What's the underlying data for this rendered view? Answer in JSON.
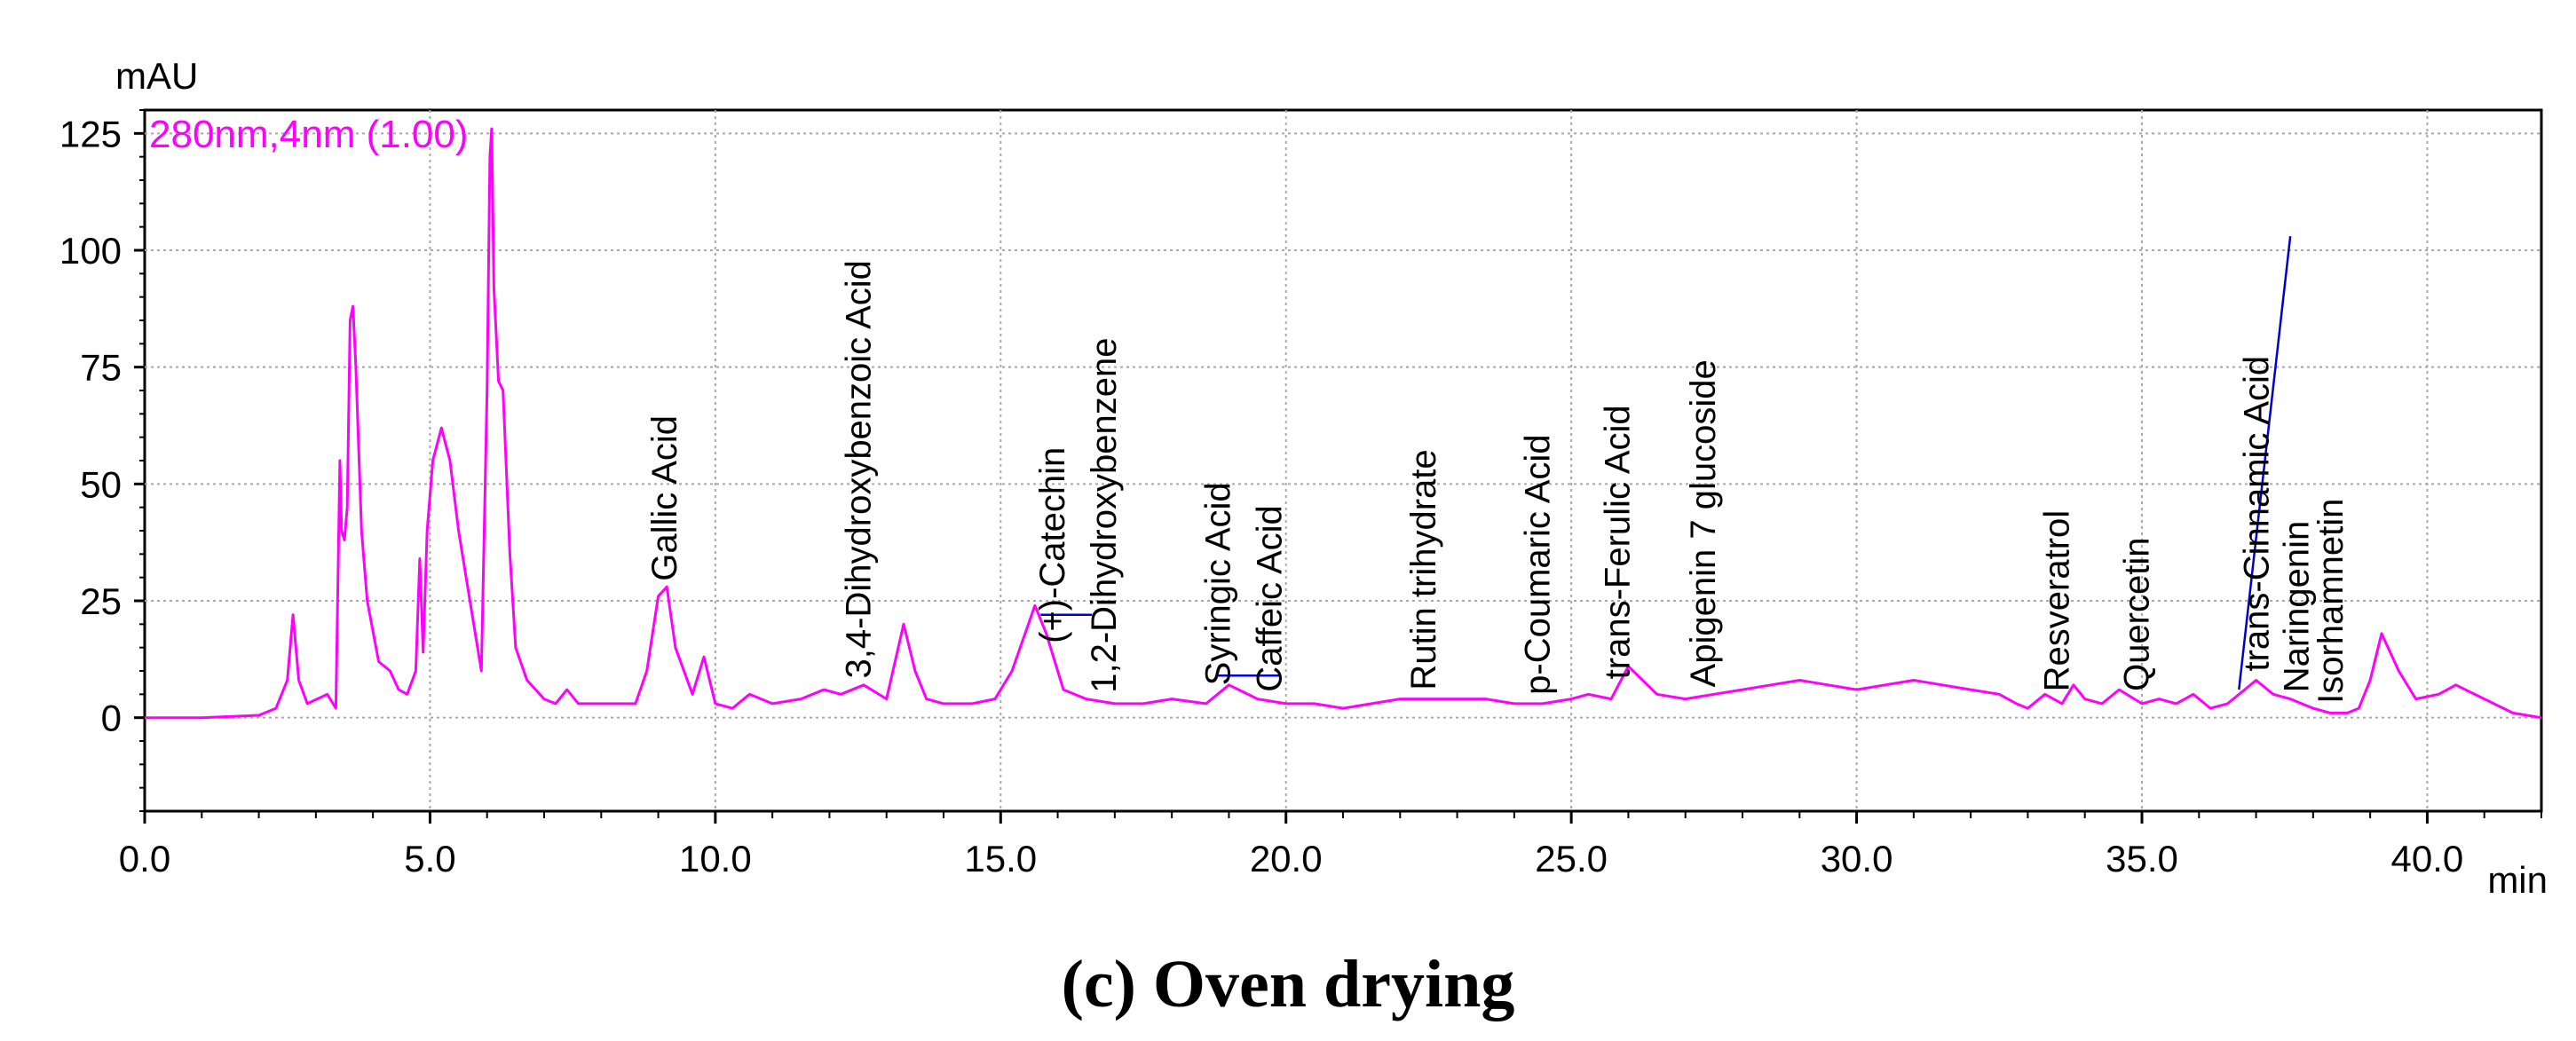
{
  "chart_data": {
    "type": "line",
    "caption": "(c) Oven drying",
    "ylabel": "mAU",
    "xlabel": "min",
    "legend": "280nm,4nm (1.00)",
    "xlim": [
      0,
      42.0
    ],
    "ylim": [
      -20,
      130
    ],
    "xticks": [
      0,
      5,
      10,
      15,
      20,
      25,
      30,
      35,
      40
    ],
    "xtick_labels": [
      "0.0",
      "5.0",
      "10.0",
      "15.0",
      "20.0",
      "25.0",
      "30.0",
      "35.0",
      "40.0"
    ],
    "yticks": [
      0,
      25,
      50,
      75,
      100,
      125
    ],
    "ytick_labels": [
      "0",
      "25",
      "50",
      "75",
      "100",
      "125"
    ],
    "grid": true,
    "series_color": "#ff00ff",
    "baseline_color": "#0000cc",
    "series": [
      {
        "name": "280nm,4nm (1.00)",
        "x": [
          0,
          1.0,
          2.0,
          2.3,
          2.5,
          2.6,
          2.7,
          2.85,
          3.2,
          3.35,
          3.42,
          3.45,
          3.5,
          3.55,
          3.6,
          3.65,
          3.7,
          3.8,
          3.9,
          4.1,
          4.3,
          4.45,
          4.6,
          4.75,
          4.82,
          4.88,
          4.95,
          5.05,
          5.2,
          5.35,
          5.5,
          5.7,
          5.9,
          6.0,
          6.05,
          6.08,
          6.12,
          6.2,
          6.28,
          6.4,
          6.5,
          6.7,
          7.0,
          7.2,
          7.4,
          7.6,
          8.0,
          8.6,
          8.8,
          9.0,
          9.15,
          9.3,
          9.6,
          9.8,
          10.0,
          10.3,
          10.6,
          11.0,
          11.5,
          11.9,
          12.2,
          12.6,
          13.0,
          13.3,
          13.5,
          13.7,
          14.0,
          14.5,
          14.9,
          15.2,
          15.4,
          15.6,
          15.8,
          16.1,
          16.5,
          17.0,
          17.5,
          18.0,
          18.6,
          19.0,
          19.5,
          20.0,
          20.5,
          21.0,
          21.5,
          22.0,
          22.5,
          23.0,
          23.5,
          24.0,
          24.5,
          25.0,
          25.3,
          25.7,
          26.0,
          26.5,
          27.0,
          27.5,
          28.0,
          28.5,
          29.0,
          29.5,
          30.0,
          30.5,
          31.0,
          31.5,
          32.0,
          32.5,
          32.8,
          33.0,
          33.3,
          33.6,
          33.8,
          34.0,
          34.3,
          34.6,
          35.0,
          35.3,
          35.6,
          35.9,
          36.2,
          36.5,
          36.8,
          37.0,
          37.3,
          37.6,
          38.0,
          38.3,
          38.6,
          38.8,
          39.0,
          39.2,
          39.5,
          39.8,
          40.2,
          40.5,
          41.0,
          41.5,
          42.0
        ],
        "values": [
          0,
          0,
          0.5,
          2,
          8,
          22,
          8,
          3,
          5,
          2,
          55,
          40,
          38,
          45,
          85,
          88,
          75,
          40,
          25,
          12,
          10,
          6,
          5,
          10,
          34,
          14,
          40,
          55,
          62,
          55,
          40,
          25,
          10,
          70,
          120,
          126,
          92,
          72,
          70,
          35,
          15,
          8,
          4,
          3,
          6,
          3,
          3,
          3,
          10,
          26,
          28,
          15,
          5,
          13,
          3,
          2,
          5,
          3,
          4,
          6,
          5,
          7,
          4,
          20,
          10,
          4,
          3,
          3,
          4,
          10,
          17,
          24,
          18,
          6,
          4,
          3,
          3,
          4,
          3,
          7,
          4,
          3,
          3,
          2,
          3,
          4,
          4,
          4,
          4,
          3,
          3,
          4,
          5,
          4,
          11,
          5,
          4,
          5,
          6,
          7,
          8,
          7,
          6,
          7,
          8,
          7,
          6,
          5,
          3,
          2,
          5,
          3,
          7,
          4,
          3,
          6,
          3,
          4,
          3,
          5,
          2,
          3,
          6,
          8,
          5,
          4,
          2,
          1,
          1,
          2,
          8,
          18,
          10,
          4,
          5,
          7,
          4,
          1,
          0
        ]
      }
    ],
    "peaks": [
      {
        "label": "Gallic Acid",
        "rt": 9.1
      },
      {
        "label": "3,4-Dihydroxybenzoic Acid",
        "rt": 12.5
      },
      {
        "label": "(+)-Catechin",
        "rt": 15.9
      },
      {
        "label": "1,2-Dihydroxybenzene",
        "rt": 16.8
      },
      {
        "label": "Syringic Acid",
        "rt": 18.8
      },
      {
        "label": "Caffeic Acid",
        "rt": 19.7
      },
      {
        "label": "Rutin trihydrate",
        "rt": 22.4
      },
      {
        "label": "p-Coumaric Acid",
        "rt": 24.4
      },
      {
        "label": "trans-Ferulic Acid",
        "rt": 25.8
      },
      {
        "label": "Apigenin 7 glucoside",
        "rt": 27.3
      },
      {
        "label": "Resveratrol",
        "rt": 33.5
      },
      {
        "label": "Quercetin",
        "rt": 34.9
      },
      {
        "label": "trans-Cinnamic Acid",
        "rt": 37.0
      },
      {
        "label": "Naringenin",
        "rt": 37.7
      },
      {
        "label": "Isorhamnetin",
        "rt": 38.3
      }
    ],
    "baseline_segments": [
      {
        "x": [
          15.7,
          16.6
        ],
        "y": [
          22,
          22
        ]
      },
      {
        "x": [
          18.8,
          19.9
        ],
        "y": [
          9,
          9
        ]
      },
      {
        "x": [
          36.7,
          37.6
        ],
        "y": [
          6,
          103
        ]
      }
    ]
  }
}
